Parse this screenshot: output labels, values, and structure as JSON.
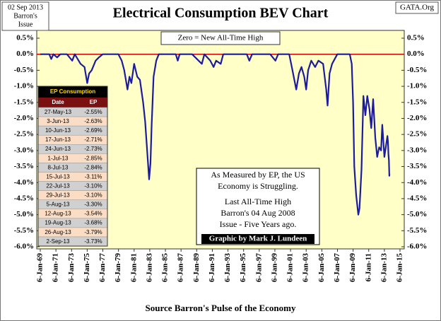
{
  "header": {
    "date_lines": [
      "02 Sep 2013",
      "Barron's",
      "Issue"
    ],
    "site": "GATA.Org"
  },
  "chart_data": {
    "type": "line",
    "title": "Electrical Consumption BEV Chart",
    "subtitle": "Zero = New All-Time High",
    "x_label": "Source Barron's Pulse of the Economy",
    "x": [
      "1969-01-06",
      "1970-03-02",
      "1970-06-01",
      "1970-09-07",
      "1971-03-01",
      "1971-08-02",
      "1972-06-05",
      "1973-02-05",
      "1973-06-04",
      "1974-03-04",
      "1974-09-02",
      "1975-01-06",
      "1975-04-07",
      "1975-08-04",
      "1976-02-02",
      "1976-07-05",
      "1977-01-03",
      "1979-01-01",
      "1979-06-04",
      "1979-10-01",
      "1980-03-03",
      "1980-06-02",
      "1980-09-01",
      "1981-01-05",
      "1981-06-01",
      "1981-10-05",
      "1982-03-01",
      "1982-06-07",
      "1982-09-06",
      "1982-12-06",
      "1983-02-07",
      "1983-04-04",
      "1983-07-04",
      "1983-11-07",
      "1984-03-05",
      "1986-05-05",
      "1986-08-04",
      "1986-11-03",
      "1988-06-06",
      "1989-09-04",
      "1990-01-01",
      "1990-10-01",
      "1991-03-04",
      "1991-07-01",
      "1992-02-03",
      "1992-06-01",
      "1995-06-05",
      "1995-10-02",
      "1996-02-05",
      "1998-06-01",
      "1999-02-01",
      "1999-06-07",
      "2000-11-06",
      "2001-03-05",
      "2001-07-02",
      "2001-10-01",
      "2002-02-04",
      "2002-06-03",
      "2002-10-07",
      "2003-01-06",
      "2003-04-07",
      "2003-09-01",
      "2004-03-01",
      "2004-08-02",
      "2005-03-07",
      "2005-08-01",
      "2005-10-03",
      "2006-01-02",
      "2006-05-01",
      "2007-01-01",
      "2008-08-04",
      "2008-11-03",
      "2009-01-05",
      "2009-03-02",
      "2009-06-01",
      "2009-09-07",
      "2009-11-02",
      "2010-02-01",
      "2010-05-03",
      "2010-08-02",
      "2010-11-01",
      "2011-02-07",
      "2011-05-02",
      "2011-08-01",
      "2011-11-07",
      "2012-02-06",
      "2012-05-07",
      "2012-08-06",
      "2012-10-01",
      "2013-01-07",
      "2013-04-01",
      "2013-05-27",
      "2013-06-24",
      "2013-07-15",
      "2013-08-05",
      "2013-08-26",
      "2013-09-02"
    ],
    "series": [
      {
        "name": "EP",
        "color": "#1c1c9c",
        "values": [
          0,
          0,
          -0.15,
          0,
          -0.1,
          0,
          0,
          -0.2,
          0,
          -0.3,
          -0.4,
          -0.9,
          -0.6,
          -0.5,
          -0.2,
          -0.1,
          0,
          0,
          -0.2,
          -0.5,
          -1.1,
          -0.7,
          -0.9,
          -0.3,
          -0.7,
          -0.8,
          -1.5,
          -2.1,
          -3.0,
          -3.9,
          -3.4,
          -2.2,
          -0.7,
          -0.2,
          0,
          0,
          -0.2,
          0,
          0,
          -0.3,
          0,
          -0.2,
          -0.4,
          -0.2,
          -0.3,
          0,
          0,
          -0.2,
          0,
          0,
          -0.2,
          0,
          0,
          -0.4,
          -0.8,
          -1.1,
          -0.6,
          -0.4,
          -0.7,
          -1.1,
          -0.5,
          -0.2,
          -0.4,
          -0.2,
          -0.3,
          -1.1,
          -1.6,
          -0.6,
          -0.3,
          0,
          0,
          -0.3,
          -1.5,
          -3.5,
          -4.4,
          -5.0,
          -4.8,
          -3.6,
          -1.3,
          -1.9,
          -1.3,
          -1.7,
          -2.3,
          -1.4,
          -2.6,
          -3.2,
          -2.9,
          -3.0,
          -2.2,
          -3.2,
          -2.8,
          -2.55,
          -2.73,
          -3.11,
          -3.3,
          -3.79,
          -3.73
        ]
      }
    ],
    "xlim": [
      "1969-01-06",
      "2015-01-06"
    ],
    "xticks": [
      {
        "value": "1969-01-06",
        "label": "6-Jan-69"
      },
      {
        "value": "1971-01-06",
        "label": "6-Jan-71"
      },
      {
        "value": "1973-01-06",
        "label": "6-Jan-73"
      },
      {
        "value": "1975-01-06",
        "label": "6-Jan-75"
      },
      {
        "value": "1977-01-06",
        "label": "6-Jan-77"
      },
      {
        "value": "1979-01-06",
        "label": "6-Jan-79"
      },
      {
        "value": "1981-01-06",
        "label": "6-Jan-81"
      },
      {
        "value": "1983-01-06",
        "label": "6-Jan-83"
      },
      {
        "value": "1985-01-06",
        "label": "6-Jan-85"
      },
      {
        "value": "1987-01-06",
        "label": "6-Jan-87"
      },
      {
        "value": "1989-01-06",
        "label": "6-Jan-89"
      },
      {
        "value": "1991-01-06",
        "label": "6-Jan-91"
      },
      {
        "value": "1993-01-06",
        "label": "6-Jan-93"
      },
      {
        "value": "1995-01-06",
        "label": "6-Jan-95"
      },
      {
        "value": "1997-01-06",
        "label": "6-Jan-97"
      },
      {
        "value": "1999-01-06",
        "label": "6-Jan-99"
      },
      {
        "value": "2001-01-06",
        "label": "6-Jan-01"
      },
      {
        "value": "2003-01-06",
        "label": "6-Jan-03"
      },
      {
        "value": "2005-01-06",
        "label": "6-Jan-05"
      },
      {
        "value": "2007-01-06",
        "label": "6-Jan-07"
      },
      {
        "value": "2009-01-06",
        "label": "6-Jan-09"
      },
      {
        "value": "2011-01-06",
        "label": "6-Jan-11"
      },
      {
        "value": "2013-01-06",
        "label": "6-Jan-13"
      },
      {
        "value": "2015-01-06",
        "label": "6-Jan-15"
      }
    ],
    "ylim": [
      -6.0,
      0.5
    ],
    "yticks": [
      {
        "value": 0.5,
        "label": "0.5%"
      },
      {
        "value": 0,
        "label": "0.0%"
      },
      {
        "value": -0.5,
        "label": "-0.5%"
      },
      {
        "value": -1.0,
        "label": "-1.0%"
      },
      {
        "value": -1.5,
        "label": "-1.5%"
      },
      {
        "value": -2.0,
        "label": "-2.0%"
      },
      {
        "value": -2.5,
        "label": "-2.5%"
      },
      {
        "value": -3.0,
        "label": "-3.0%"
      },
      {
        "value": -3.5,
        "label": "-3.5%"
      },
      {
        "value": -4.0,
        "label": "-4.0%"
      },
      {
        "value": -4.5,
        "label": "-4.5%"
      },
      {
        "value": -5.0,
        "label": "-5.0%"
      },
      {
        "value": -5.5,
        "label": "-5.5%"
      },
      {
        "value": -6.0,
        "label": "-6.0%"
      }
    ],
    "zero_line_color": "#cc0000",
    "plot_background": "#ffffc8"
  },
  "table": {
    "title": "EP Consumption",
    "columns": [
      "Date",
      "EP"
    ],
    "rows": [
      [
        "27-May-13",
        "-2.55%"
      ],
      [
        "3-Jun-13",
        "-2.63%"
      ],
      [
        "10-Jun-13",
        "-2.69%"
      ],
      [
        "17-Jun-13",
        "-2.71%"
      ],
      [
        "24-Jun-13",
        "-2.73%"
      ],
      [
        "1-Jul-13",
        "-2.85%"
      ],
      [
        "8-Jul-13",
        "-2.84%"
      ],
      [
        "15-Jul-13",
        "-3.11%"
      ],
      [
        "22-Jul-13",
        "-3.10%"
      ],
      [
        "29-Jul-13",
        "-3.10%"
      ],
      [
        "5-Aug-13",
        "-3.30%"
      ],
      [
        "12-Aug-13",
        "-3.54%"
      ],
      [
        "19-Aug-13",
        "-3.68%"
      ],
      [
        "26-Aug-13",
        "-3.79%"
      ],
      [
        "2-Sep-13",
        "-3.73%"
      ]
    ]
  },
  "notes": {
    "lines": [
      "As Measured by EP, the US",
      "Economy is Struggling.",
      "Last All-Time High",
      "Barron's 04 Aug 2008",
      "Issue - Five Years ago."
    ],
    "credit": "Graphic by Mark J. Lundeen"
  }
}
